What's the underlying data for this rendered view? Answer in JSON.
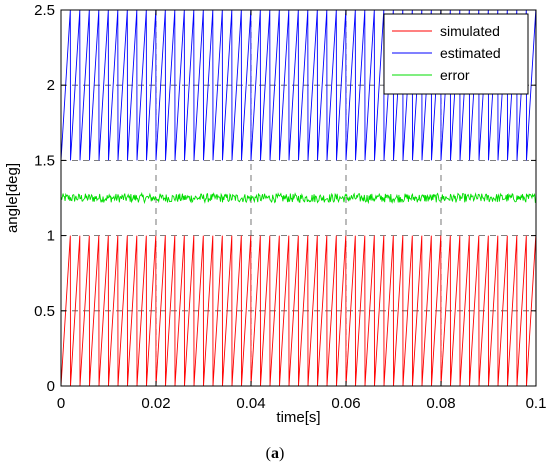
{
  "chart_data": {
    "type": "line",
    "xlabel": "time[s]",
    "ylabel": "angle[deg]",
    "xlim": [
      0,
      0.1
    ],
    "ylim": [
      0,
      2.5
    ],
    "xticks": [
      0,
      0.02,
      0.04,
      0.06,
      0.08,
      0.1
    ],
    "xtick_labels": [
      "0",
      "0.02",
      "0.04",
      "0.06",
      "0.08",
      "0.1"
    ],
    "yticks": [
      0,
      0.5,
      1,
      1.5,
      2,
      2.5
    ],
    "ytick_labels": [
      "0",
      "0.5",
      "1",
      "1.5",
      "2",
      "2.5"
    ],
    "grid": true,
    "legend_position": "top-right",
    "series": [
      {
        "name": "simulated",
        "color": "#ff0000",
        "shape": "sawtooth",
        "period": 0.002,
        "min": 0,
        "max": 1
      },
      {
        "name": "estimated",
        "color": "#0000ff",
        "shape": "sawtooth",
        "period": 0.002,
        "min": 1.5,
        "max": 2.5
      },
      {
        "name": "error",
        "color": "#00dd00",
        "shape": "noise",
        "mean": 1.25,
        "spread": 0.03
      }
    ]
  },
  "caption": {
    "open": "(",
    "letter": "a",
    "close": ")"
  }
}
